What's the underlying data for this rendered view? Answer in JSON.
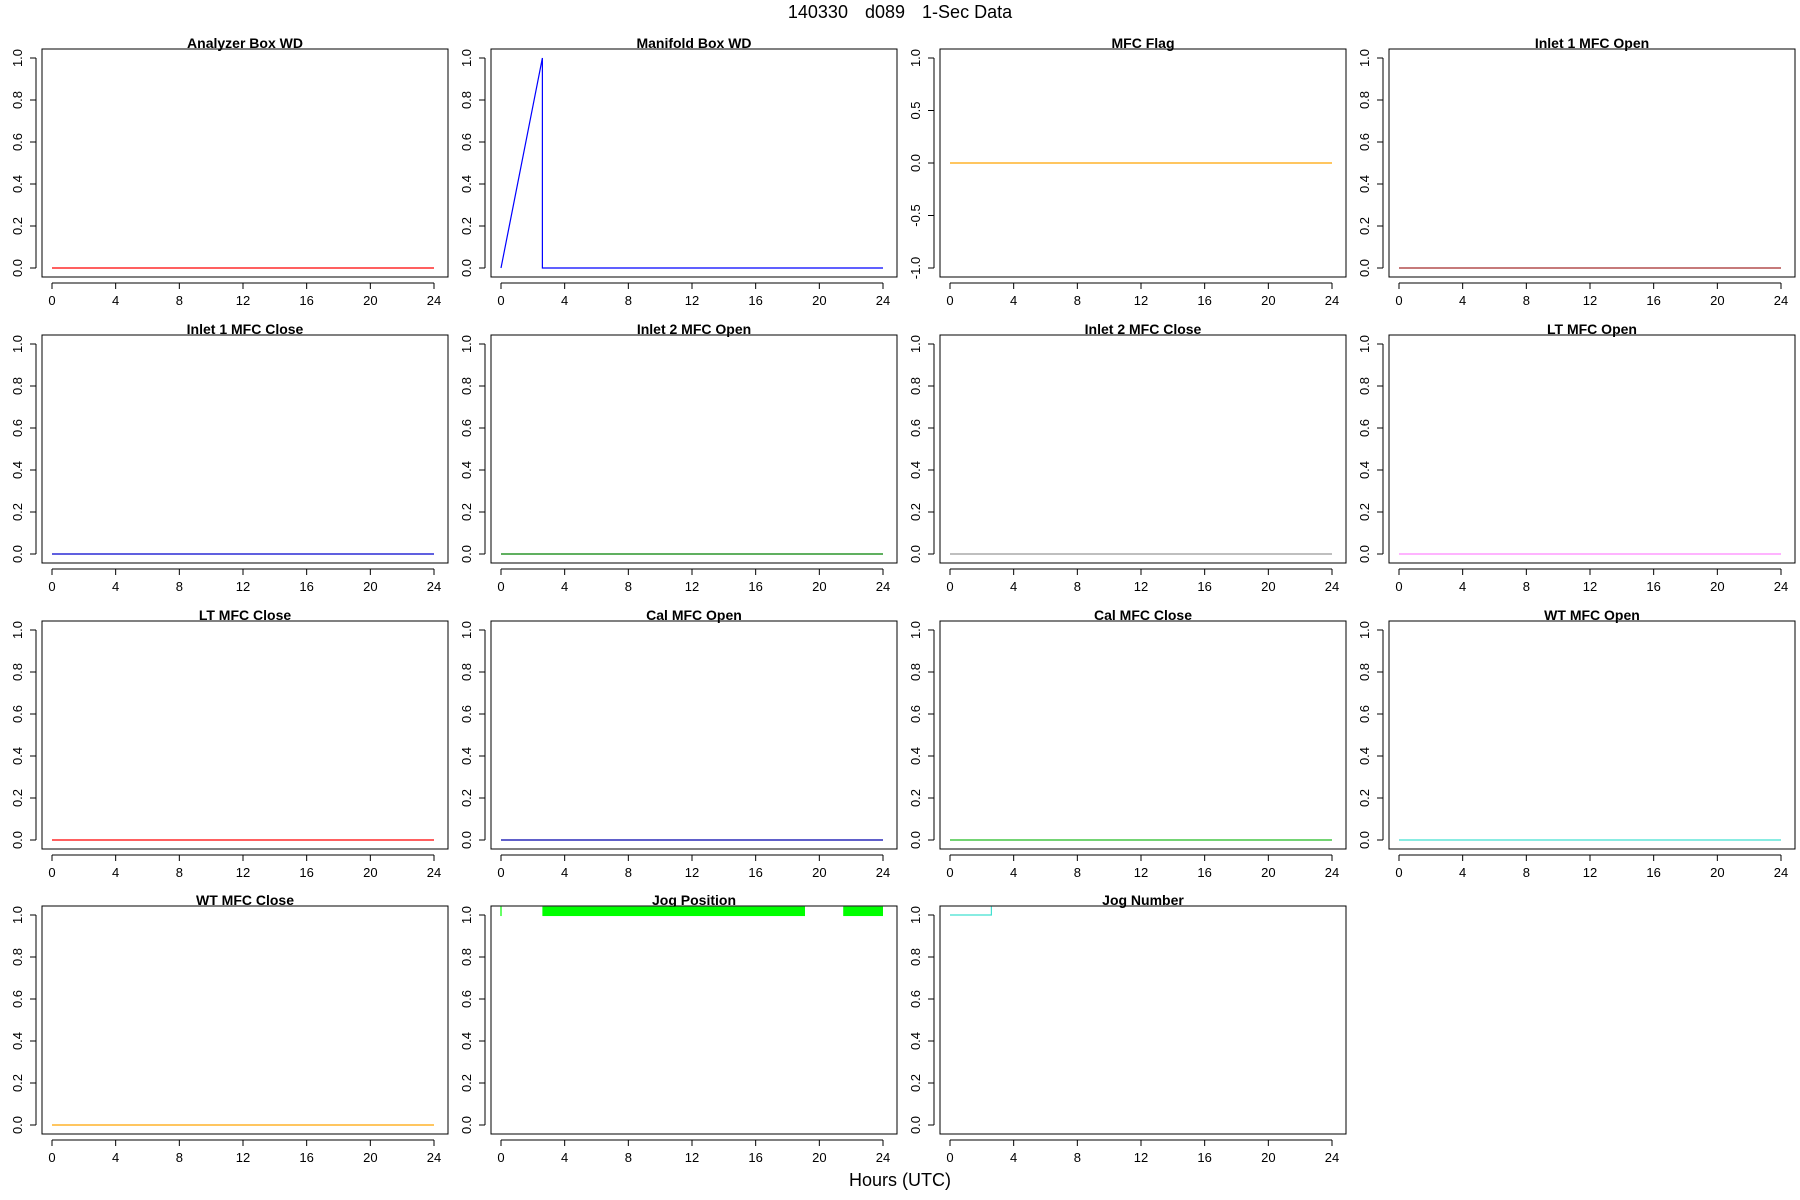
{
  "page": {
    "title_parts": [
      "140330",
      "d089",
      "1-Sec Data"
    ],
    "xlabel": "Hours (UTC)"
  },
  "chart_data": [
    {
      "type": "line",
      "title": "Analyzer Box WD",
      "color": "#ff0000",
      "x_ticks": [
        0,
        4,
        8,
        12,
        16,
        20,
        24
      ],
      "xlim": [
        0,
        24
      ],
      "ylim": [
        0,
        1
      ],
      "y_ticks": [
        "0.0",
        "0.2",
        "0.4",
        "0.6",
        "0.8",
        "1.0"
      ],
      "y_tick_values": [
        0,
        0.2,
        0.4,
        0.6,
        0.8,
        1.0
      ],
      "segments": [
        [
          [
            0,
            0
          ],
          [
            24,
            0
          ]
        ]
      ]
    },
    {
      "type": "line",
      "title": "Manifold Box WD",
      "color": "#0000ff",
      "x_ticks": [
        0,
        4,
        8,
        12,
        16,
        20,
        24
      ],
      "xlim": [
        0,
        24
      ],
      "ylim": [
        0,
        1
      ],
      "y_ticks": [
        "0.0",
        "0.2",
        "0.4",
        "0.6",
        "0.8",
        "1.0"
      ],
      "y_tick_values": [
        0,
        0.2,
        0.4,
        0.6,
        0.8,
        1.0
      ],
      "segments": [
        [
          [
            0,
            0
          ],
          [
            2.6,
            1
          ],
          [
            2.6,
            0
          ],
          [
            24,
            0
          ]
        ]
      ]
    },
    {
      "type": "line",
      "title": "MFC Flag",
      "color": "#ffa500",
      "x_ticks": [
        0,
        4,
        8,
        12,
        16,
        20,
        24
      ],
      "xlim": [
        0,
        24
      ],
      "ylim": [
        -1,
        1
      ],
      "y_ticks": [
        "-1.0",
        "-0.5",
        "0.0",
        "0.5",
        "1.0"
      ],
      "y_tick_values": [
        -1,
        -0.5,
        0,
        0.5,
        1.0
      ],
      "segments": [
        [
          [
            0,
            0
          ],
          [
            24,
            0
          ]
        ]
      ]
    },
    {
      "type": "line",
      "title": "Inlet 1 MFC Open",
      "color": "#a52a2a",
      "x_ticks": [
        0,
        4,
        8,
        12,
        16,
        20,
        24
      ],
      "xlim": [
        0,
        24
      ],
      "ylim": [
        0,
        1
      ],
      "y_ticks": [
        "0.0",
        "0.2",
        "0.4",
        "0.6",
        "0.8",
        "1.0"
      ],
      "y_tick_values": [
        0,
        0.2,
        0.4,
        0.6,
        0.8,
        1.0
      ],
      "segments": [
        [
          [
            0,
            0
          ],
          [
            24,
            0
          ]
        ]
      ]
    },
    {
      "type": "line",
      "title": "Inlet 1 MFC Close",
      "color": "#0000cd",
      "x_ticks": [
        0,
        4,
        8,
        12,
        16,
        20,
        24
      ],
      "xlim": [
        0,
        24
      ],
      "ylim": [
        0,
        1
      ],
      "y_ticks": [
        "0.0",
        "0.2",
        "0.4",
        "0.6",
        "0.8",
        "1.0"
      ],
      "y_tick_values": [
        0,
        0.2,
        0.4,
        0.6,
        0.8,
        1.0
      ],
      "segments": [
        [
          [
            0,
            0
          ],
          [
            24,
            0
          ]
        ]
      ]
    },
    {
      "type": "line",
      "title": "Inlet 2 MFC Open",
      "color": "#008000",
      "x_ticks": [
        0,
        4,
        8,
        12,
        16,
        20,
        24
      ],
      "xlim": [
        0,
        24
      ],
      "ylim": [
        0,
        1
      ],
      "y_ticks": [
        "0.0",
        "0.2",
        "0.4",
        "0.6",
        "0.8",
        "1.0"
      ],
      "y_tick_values": [
        0,
        0.2,
        0.4,
        0.6,
        0.8,
        1.0
      ],
      "segments": [
        [
          [
            0,
            0
          ],
          [
            24,
            0
          ]
        ]
      ]
    },
    {
      "type": "line",
      "title": "Inlet 2 MFC Close",
      "color": "#999999",
      "x_ticks": [
        0,
        4,
        8,
        12,
        16,
        20,
        24
      ],
      "xlim": [
        0,
        24
      ],
      "ylim": [
        0,
        1
      ],
      "y_ticks": [
        "0.0",
        "0.2",
        "0.4",
        "0.6",
        "0.8",
        "1.0"
      ],
      "y_tick_values": [
        0,
        0.2,
        0.4,
        0.6,
        0.8,
        1.0
      ],
      "segments": [
        [
          [
            0,
            0
          ],
          [
            24,
            0
          ]
        ]
      ]
    },
    {
      "type": "line",
      "title": "LT MFC Open",
      "color": "#ff88ff",
      "x_ticks": [
        0,
        4,
        8,
        12,
        16,
        20,
        24
      ],
      "xlim": [
        0,
        24
      ],
      "ylim": [
        0,
        1
      ],
      "y_ticks": [
        "0.0",
        "0.2",
        "0.4",
        "0.6",
        "0.8",
        "1.0"
      ],
      "y_tick_values": [
        0,
        0.2,
        0.4,
        0.6,
        0.8,
        1.0
      ],
      "segments": [
        [
          [
            0,
            0
          ],
          [
            24,
            0
          ]
        ]
      ]
    },
    {
      "type": "line",
      "title": "LT MFC Close",
      "color": "#ff0000",
      "x_ticks": [
        0,
        4,
        8,
        12,
        16,
        20,
        24
      ],
      "xlim": [
        0,
        24
      ],
      "ylim": [
        0,
        1
      ],
      "y_ticks": [
        "0.0",
        "0.2",
        "0.4",
        "0.6",
        "0.8",
        "1.0"
      ],
      "y_tick_values": [
        0,
        0.2,
        0.4,
        0.6,
        0.8,
        1.0
      ],
      "segments": [
        [
          [
            0,
            0
          ],
          [
            24,
            0
          ]
        ]
      ]
    },
    {
      "type": "line",
      "title": "Cal MFC Open",
      "color": "#0000aa",
      "x_ticks": [
        0,
        4,
        8,
        12,
        16,
        20,
        24
      ],
      "xlim": [
        0,
        24
      ],
      "ylim": [
        0,
        1
      ],
      "y_ticks": [
        "0.0",
        "0.2",
        "0.4",
        "0.6",
        "0.8",
        "1.0"
      ],
      "y_tick_values": [
        0,
        0.2,
        0.4,
        0.6,
        0.8,
        1.0
      ],
      "segments": [
        [
          [
            0,
            0
          ],
          [
            24,
            0
          ]
        ]
      ]
    },
    {
      "type": "line",
      "title": "Cal MFC Close",
      "color": "#22bb22",
      "x_ticks": [
        0,
        4,
        8,
        12,
        16,
        20,
        24
      ],
      "xlim": [
        0,
        24
      ],
      "ylim": [
        0,
        1
      ],
      "y_ticks": [
        "0.0",
        "0.2",
        "0.4",
        "0.6",
        "0.8",
        "1.0"
      ],
      "y_tick_values": [
        0,
        0.2,
        0.4,
        0.6,
        0.8,
        1.0
      ],
      "segments": [
        [
          [
            0,
            0
          ],
          [
            24,
            0
          ]
        ]
      ]
    },
    {
      "type": "line",
      "title": "WT MFC Open",
      "color": "#40e0d0",
      "x_ticks": [
        0,
        4,
        8,
        12,
        16,
        20,
        24
      ],
      "xlim": [
        0,
        24
      ],
      "ylim": [
        0,
        1
      ],
      "y_ticks": [
        "0.0",
        "0.2",
        "0.4",
        "0.6",
        "0.8",
        "1.0"
      ],
      "y_tick_values": [
        0,
        0.2,
        0.4,
        0.6,
        0.8,
        1.0
      ],
      "segments": [
        [
          [
            0,
            0
          ],
          [
            24,
            0
          ]
        ]
      ]
    },
    {
      "type": "line",
      "title": "WT MFC Close",
      "color": "#ffa500",
      "x_ticks": [
        0,
        4,
        8,
        12,
        16,
        20,
        24
      ],
      "xlim": [
        0,
        24
      ],
      "ylim": [
        0,
        1
      ],
      "y_ticks": [
        "0.0",
        "0.2",
        "0.4",
        "0.6",
        "0.8",
        "1.0"
      ],
      "y_tick_values": [
        0,
        0.2,
        0.4,
        0.6,
        0.8,
        1.0
      ],
      "segments": [
        [
          [
            0,
            0
          ],
          [
            24,
            0
          ]
        ]
      ]
    },
    {
      "type": "line",
      "title": "Jog Position",
      "color": "#00ff00",
      "x_ticks": [
        0,
        4,
        8,
        12,
        16,
        20,
        24
      ],
      "xlim": [
        0,
        24
      ],
      "ylim": [
        0,
        1
      ],
      "y_ticks": [
        "0.0",
        "0.2",
        "0.4",
        "0.6",
        "0.8",
        "1.0"
      ],
      "y_tick_values": [
        0,
        0.2,
        0.4,
        0.6,
        0.8,
        1.0
      ],
      "segments": [
        [
          [
            0,
            0.995
          ],
          [
            0,
            1.04
          ]
        ]
      ],
      "bands": [
        [
          2.6,
          19.1,
          0.995,
          1.04
        ],
        [
          21.5,
          24,
          0.995,
          1.04
        ]
      ]
    },
    {
      "type": "line",
      "title": "Jog Number",
      "color": "#40e0d0",
      "x_ticks": [
        0,
        4,
        8,
        12,
        16,
        20,
        24
      ],
      "xlim": [
        0,
        24
      ],
      "ylim": [
        0,
        1
      ],
      "y_ticks": [
        "0.0",
        "0.2",
        "0.4",
        "0.6",
        "0.8",
        "1.0"
      ],
      "y_tick_values": [
        0,
        0.2,
        0.4,
        0.6,
        0.8,
        1.0
      ],
      "segments": [
        [
          [
            0,
            1
          ],
          [
            2.6,
            1
          ],
          [
            2.6,
            1.04
          ]
        ]
      ]
    }
  ]
}
